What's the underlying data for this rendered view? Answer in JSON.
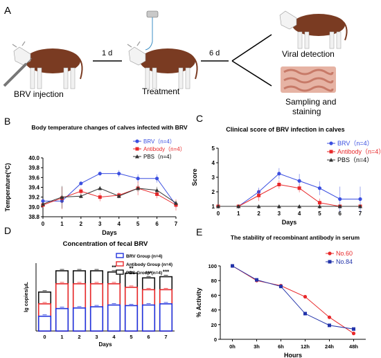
{
  "schematic": {
    "panel_letter": "A",
    "step1_label": "BRV injection",
    "step2_label": "Treatment",
    "step3a_label": "Viral detection",
    "step3b_label": "Sampling and",
    "step3b_label2": "staining",
    "arrow1_label": "1 d",
    "arrow2_label": "6 d",
    "colors": {
      "cow_brown": "#7a3b22",
      "cow_white": "#f4f4f4",
      "tissue": "#e2a898",
      "arrow": "#000000"
    }
  },
  "chart_data": [
    {
      "panel": "B",
      "type": "line",
      "title": "Body temperature changes of calves infected with BRV",
      "xlabel": "Days",
      "ylabel": "Temperature(°C)",
      "x": [
        0,
        1,
        2,
        3,
        4,
        5,
        6,
        7
      ],
      "xticks": [
        "0",
        "1",
        "2",
        "3",
        "4",
        "5",
        "6",
        "7"
      ],
      "yticks": [
        "38.8",
        "39.0",
        "39.2",
        "39.4",
        "39.6",
        "39.8",
        "40.0"
      ],
      "ylim": [
        38.8,
        40.0
      ],
      "legend_position": "top-right",
      "series": [
        {
          "name": "BRV（n=4）",
          "color": "#3b4fe0",
          "marker": "circle",
          "values": [
            39.12,
            39.12,
            39.48,
            39.68,
            39.68,
            39.58,
            39.58,
            39.04
          ]
        },
        {
          "name": "Antibody（n=4）",
          "color": "#e8282a",
          "marker": "square",
          "values": [
            39.04,
            39.18,
            39.32,
            39.2,
            39.24,
            39.38,
            39.26,
            39.04
          ]
        },
        {
          "name": "PBS（n=4）",
          "color": "#333333",
          "marker": "triangle",
          "values": [
            39.06,
            39.2,
            39.22,
            39.38,
            39.22,
            39.38,
            39.34,
            39.08
          ]
        }
      ]
    },
    {
      "panel": "C",
      "type": "line",
      "title": "Clinical score of BRV infection in calves",
      "xlabel": "Days",
      "ylabel": "Score",
      "x": [
        0,
        1,
        2,
        3,
        4,
        5,
        6,
        7
      ],
      "xticks": [
        "0",
        "1",
        "2",
        "3",
        "4",
        "5",
        "6",
        "7"
      ],
      "yticks": [
        "1",
        "2",
        "3",
        "4",
        "5"
      ],
      "ylim": [
        1,
        5
      ],
      "legend_position": "top-right",
      "series": [
        {
          "name": "BRV（n=4）",
          "color": "#3b4fe0",
          "marker": "circle",
          "values": [
            1,
            1,
            2.0,
            3.25,
            2.75,
            2.25,
            1.5,
            1.5
          ]
        },
        {
          "name": "Antibody（n=4）",
          "color": "#e8282a",
          "marker": "square",
          "values": [
            1,
            1,
            1.75,
            2.5,
            2.25,
            1.25,
            1,
            1
          ]
        },
        {
          "name": "PBS（n=4）",
          "color": "#333333",
          "marker": "triangle",
          "values": [
            1,
            1,
            1,
            1,
            1,
            1,
            1,
            1
          ]
        }
      ]
    },
    {
      "panel": "D",
      "type": "bar",
      "title": "Concentration of fecal BRV",
      "xlabel": "Days",
      "ylabel": "lg copies/μL",
      "categories": [
        "0",
        "1",
        "2",
        "3",
        "4",
        "5",
        "6",
        "7"
      ],
      "legend_position": "top-right",
      "series": [
        {
          "name": "PBS Group (n=4)",
          "color": "#111111",
          "values": [
            6.6,
            10.2,
            10.2,
            10.2,
            10.0,
            9.8,
            9.0,
            9.2
          ]
        },
        {
          "name": "Antibody Group (n=4)",
          "color": "#e8282a",
          "values": [
            4.6,
            8.0,
            8.0,
            8.0,
            8.0,
            7.4,
            7.0,
            7.0
          ]
        },
        {
          "name": "BRV Group (n=4)",
          "color": "#2233dd",
          "values": [
            2.5,
            3.8,
            3.9,
            4.1,
            4.4,
            4.3,
            4.4,
            4.6
          ]
        }
      ],
      "legend_order": [
        "BRV Group (n=4)",
        "Antibody Group (n=4)",
        "PBS Group (n=4)"
      ],
      "annotations": [
        "",
        "",
        "",
        "",
        "**",
        "**",
        "***",
        "***"
      ]
    },
    {
      "panel": "E",
      "type": "line",
      "title": "The stability of recombinant antibody in serum",
      "xlabel": "Hours",
      "ylabel": "% Activity",
      "categories": [
        "0h",
        "3h",
        "6h",
        "12h",
        "24h",
        "48h"
      ],
      "yticks": [
        "0",
        "20",
        "40",
        "60",
        "80",
        "100"
      ],
      "ylim": [
        0,
        100
      ],
      "legend_position": "top-right",
      "series": [
        {
          "name": "No.60",
          "color": "#e8282a",
          "marker": "circle",
          "values": [
            100,
            80,
            73,
            58,
            30,
            8
          ]
        },
        {
          "name": "No.84",
          "color": "#2233aa",
          "marker": "square",
          "values": [
            100,
            81,
            72,
            35,
            19,
            14
          ]
        }
      ]
    }
  ],
  "panels": {
    "B": "B",
    "C": "C",
    "D": "D",
    "E": "E"
  }
}
